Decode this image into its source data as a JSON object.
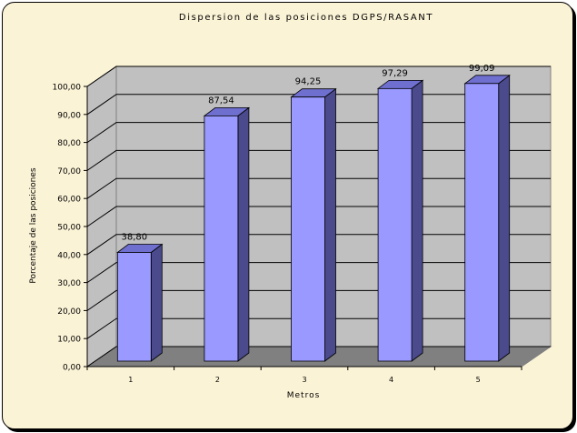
{
  "chart_data": {
    "type": "bar",
    "title": "Dispersion de las posiciones DGPS/RASANT",
    "xlabel": "Metros",
    "ylabel": "Porcentaje de las posiciones",
    "categories": [
      "1",
      "2",
      "3",
      "4",
      "5"
    ],
    "values": [
      38.8,
      87.54,
      94.25,
      97.29,
      99.09
    ],
    "value_labels": [
      "38,80",
      "87,54",
      "94,25",
      "97,29",
      "99,09"
    ],
    "y_ticks": [
      "0,00",
      "10,00",
      "20,00",
      "30,00",
      "40,00",
      "50,00",
      "60,00",
      "70,00",
      "80,00",
      "90,00",
      "100,00"
    ],
    "ylim": [
      0,
      100
    ],
    "grid": true,
    "legend": "none",
    "three_d": true,
    "colors": {
      "chart_background": "#fbf3d6",
      "plot_wall": "#c0c0c0",
      "floor": "#808080",
      "bar_front": "#9999ff",
      "bar_top": "#6f6fd0",
      "bar_side": "#4a4a8c",
      "grid": "#000000"
    }
  }
}
